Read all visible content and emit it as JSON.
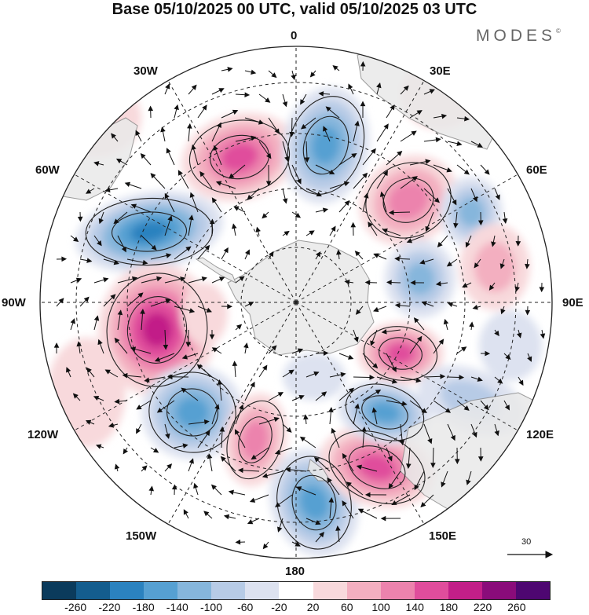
{
  "title": "Base 05/10/2025 00 UTC, valid 05/10/2025 03 UTC",
  "brand": {
    "name": "MODES",
    "mark": "©"
  },
  "map": {
    "projection": "south-polar-stereographic",
    "labels": {
      "lon_0": "0",
      "lon_30e": "30E",
      "lon_60e": "60E",
      "lon_90e": "90E",
      "lon_120e": "120E",
      "lon_150e": "150E",
      "lon_180": "180",
      "lon_150w": "150W",
      "lon_120w": "120W",
      "lon_90w": "90W",
      "lon_60w": "60W",
      "lon_30w": "30W"
    },
    "reference_vector": {
      "magnitude": "30"
    }
  },
  "colorbar": {
    "colors": [
      "#0b3b5c",
      "#145d8e",
      "#2b82bf",
      "#56a0d2",
      "#86b6dc",
      "#b7cbe6",
      "#dde2f0",
      "#ffffff",
      "#f8d9dc",
      "#f3afc0",
      "#ec83ad",
      "#e04d9c",
      "#c21f88",
      "#8a0c7a",
      "#4e0771"
    ],
    "tick_labels": [
      "-260",
      "-220",
      "-180",
      "-140",
      "-100",
      "-60",
      "-20",
      "20",
      "60",
      "100",
      "140",
      "180",
      "220",
      "260"
    ]
  }
}
